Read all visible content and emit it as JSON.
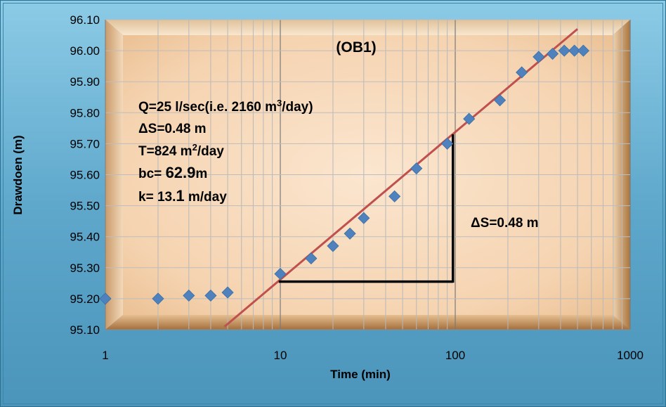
{
  "chart_data": {
    "type": "scatter",
    "title": "(OB1)",
    "xlabel": "Time (min)",
    "ylabel": "Drawdoen (m)",
    "x_scale": "log",
    "xlim": [
      1,
      1000
    ],
    "ylim": [
      95.1,
      96.1
    ],
    "x_ticks": [
      "1",
      "10",
      "100",
      "1000"
    ],
    "y_ticks": [
      "95.10",
      "95.20",
      "95.30",
      "95.40",
      "95.50",
      "95.60",
      "95.70",
      "95.80",
      "95.90",
      "96.00",
      "96.10"
    ],
    "grid": "log-x minor and major, y major",
    "series": [
      {
        "marker": "diamond",
        "color": "#4f81bd",
        "points": [
          [
            1,
            95.2
          ],
          [
            2,
            95.2
          ],
          [
            3,
            95.21
          ],
          [
            4,
            95.21
          ],
          [
            5,
            95.22
          ],
          [
            10,
            95.28
          ],
          [
            15,
            95.33
          ],
          [
            20,
            95.37
          ],
          [
            25,
            95.41
          ],
          [
            30,
            95.46
          ],
          [
            45,
            95.53
          ],
          [
            60,
            95.62
          ],
          [
            90,
            95.7
          ],
          [
            120,
            95.78
          ],
          [
            180,
            95.84
          ],
          [
            240,
            95.93
          ],
          [
            300,
            95.98
          ],
          [
            360,
            95.99
          ],
          [
            420,
            96.0
          ],
          [
            480,
            96.0
          ],
          [
            540,
            96.0
          ]
        ]
      }
    ],
    "fit_line": {
      "color": "#c0504d",
      "from": [
        4.8,
        95.11
      ],
      "to": [
        500,
        96.07
      ]
    },
    "delta_marker": {
      "x_from": 9.8,
      "x_to": 97,
      "y_low": 95.255,
      "y_high": 95.73,
      "label": "ΔS=0.48 m"
    },
    "annotations": [
      {
        "id": "q",
        "parts": [
          "Q=25 l/sec(i.e. 2160 m",
          "3",
          "/day)"
        ]
      },
      {
        "id": "ds",
        "parts": [
          "ΔS=0.48 m"
        ]
      },
      {
        "id": "t",
        "parts": [
          "T=824 m",
          "2",
          "/day"
        ]
      },
      {
        "id": "bc",
        "parts": [
          "bc= ",
          "62.9",
          "m"
        ]
      },
      {
        "id": "k",
        "parts": [
          "k= 13.",
          "1",
          " m/day"
        ]
      }
    ]
  }
}
